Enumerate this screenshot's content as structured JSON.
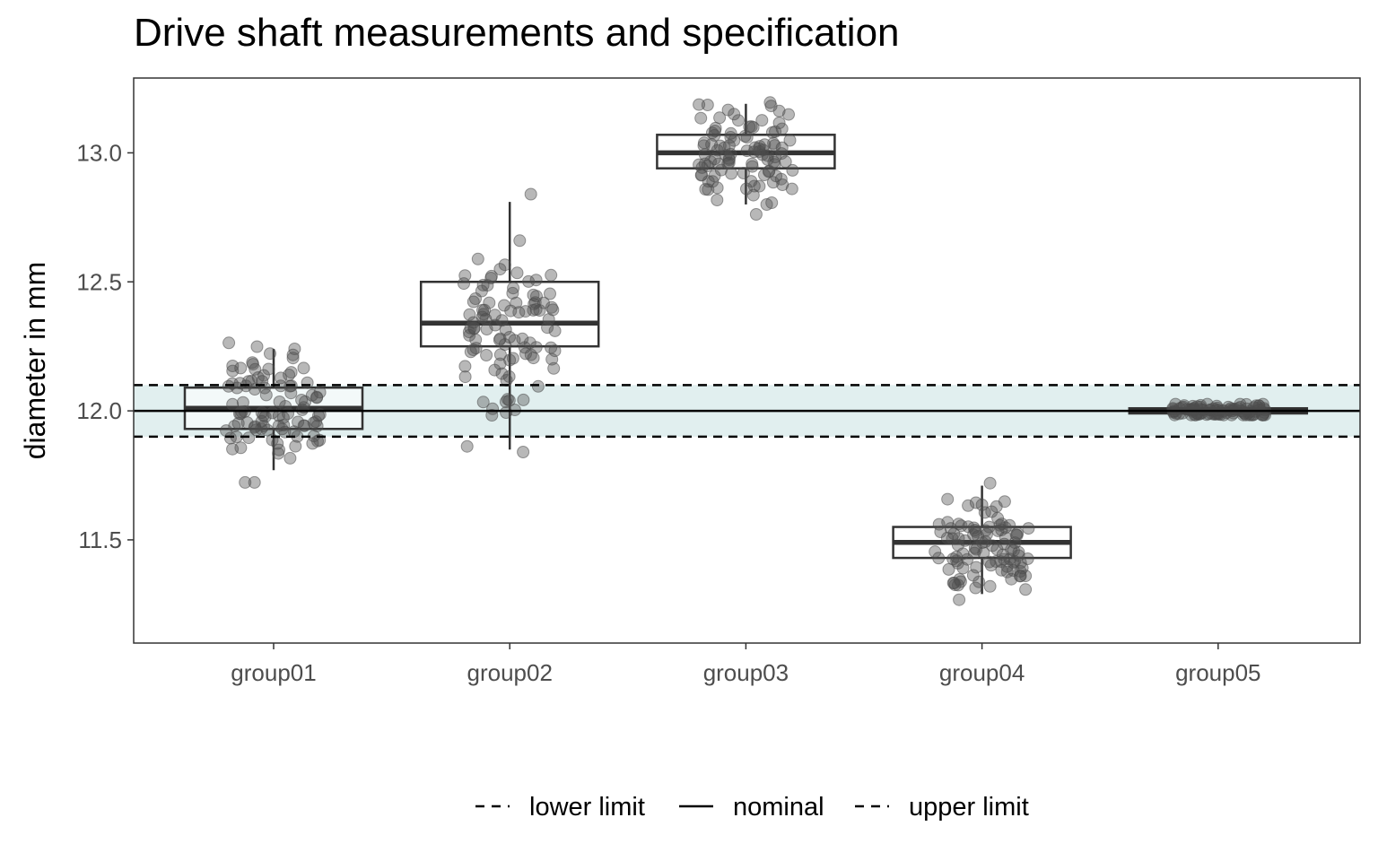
{
  "chart_data": {
    "type": "box",
    "title": "Drive shaft measurements and specification",
    "xlabel": "",
    "ylabel": "diameter in mm",
    "categories": [
      "group01",
      "group02",
      "group03",
      "group04",
      "group05"
    ],
    "ylim": [
      11.1,
      13.29
    ],
    "yticks": [
      11.5,
      12.0,
      12.5,
      13.0
    ],
    "ytick_labels": [
      "11.5",
      "12.0",
      "12.5",
      "13.0"
    ],
    "grid": false,
    "boxes": [
      {
        "category": "group01",
        "min": 11.77,
        "q1": 11.93,
        "median": 12.01,
        "q3": 12.09,
        "max": 12.24
      },
      {
        "category": "group02",
        "min": 11.85,
        "q1": 12.25,
        "median": 12.34,
        "q3": 12.5,
        "max": 12.81
      },
      {
        "category": "group03",
        "min": 12.8,
        "q1": 12.94,
        "median": 13.0,
        "q3": 13.07,
        "max": 13.19
      },
      {
        "category": "group04",
        "min": 11.29,
        "q1": 11.43,
        "median": 11.49,
        "q3": 11.55,
        "max": 11.71
      },
      {
        "category": "group05",
        "min": 11.99,
        "q1": 11.99,
        "median": 12.0,
        "q3": 12.01,
        "max": 12.02
      }
    ],
    "points_per_group": 100,
    "spec_limits": {
      "lower": 11.9,
      "nominal": 12.0,
      "upper": 12.1
    },
    "spec_band_color": "#e1efef",
    "point_color": "#4d4d4d",
    "legend": {
      "position": "bottom",
      "entries": [
        {
          "label": "lower limit",
          "linetype": "dashed"
        },
        {
          "label": "nominal",
          "linetype": "solid"
        },
        {
          "label": "upper limit",
          "linetype": "dashed"
        }
      ]
    }
  }
}
